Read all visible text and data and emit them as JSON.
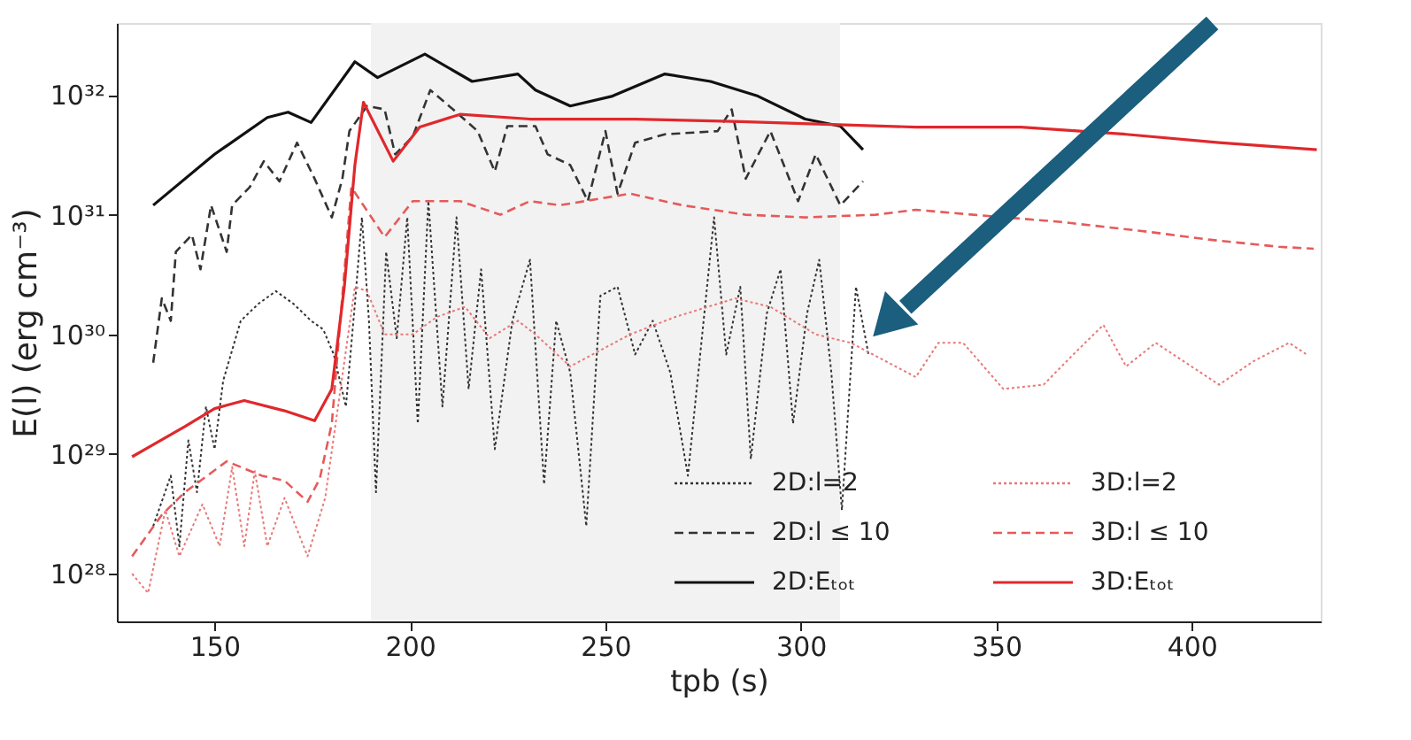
{
  "chart_data": {
    "type": "line",
    "xlabel": "tpb (s)",
    "ylabel": "E(l) (erg cm⁻³)",
    "xlim": [
      125,
      433
    ],
    "xticks": [
      150,
      200,
      250,
      300,
      350,
      400
    ],
    "ylim": [
      4e+27,
      4e+32
    ],
    "log": "y",
    "yticks": [
      {
        "value": 1e+28,
        "label": "10²⁸"
      },
      {
        "value": 1e+29,
        "label": "10²⁹"
      },
      {
        "value": 1e+30,
        "label": "10³⁰"
      },
      {
        "value": 1e+31,
        "label": "10³¹"
      },
      {
        "value": 1e+32,
        "label": "10³²"
      }
    ],
    "grid": false,
    "legend": "bottom right",
    "bands": [
      {
        "axis": "x",
        "from": 190,
        "to": 310,
        "color": "#f2f2f2"
      }
    ],
    "series": [
      {
        "name": "2D:l=2",
        "color": "#333333",
        "line_style": "dotted",
        "x": [
          134.3,
          138.8,
          141.0,
          143.3,
          145.5,
          147.8,
          150,
          152.2,
          156.7,
          161.2,
          165.7,
          170.2,
          174.7,
          177.8,
          180.5,
          183.6,
          185.9,
          187.7,
          189.5,
          191.3,
          193.9,
          196.6,
          199.3,
          202.0,
          204.7,
          208.3,
          211.9,
          215.0,
          218.2,
          221.7,
          226.2,
          230.7,
          234.3,
          237.4,
          241.0,
          245.1,
          248.7,
          253.1,
          257.6,
          262.1,
          266.6,
          271.1,
          277.8,
          280.9,
          284.5,
          287.2,
          291.3,
          294.8,
          298.0,
          301.6,
          304.7,
          307.8,
          310.5,
          314.1,
          317.3
        ],
        "values": [
          2.5e+28,
          6.6e+28,
          1.7e+28,
          1.3e+29,
          4.8e+28,
          2.5e+29,
          1.1e+29,
          4.1e+29,
          1.3e+30,
          1.8e+30,
          2.3e+30,
          1.8e+30,
          1.3e+30,
          1.1e+30,
          6.8e+29,
          2.5e+29,
          1.8e+30,
          9.5e+30,
          1.3e+30,
          4.8e+28,
          4.9e+30,
          9.3e+29,
          9.5e+30,
          1.8e+29,
          1.3e+31,
          2.5e+29,
          9.5e+30,
          3.5e+29,
          3.5e+30,
          1.1e+29,
          1.3e+30,
          4.2e+30,
          5.6e+28,
          1.3e+30,
          4.8e+29,
          2.5e+28,
          2.1e+30,
          2.5e+30,
          6.8e+29,
          1.3e+30,
          4.8e+29,
          6.6e+28,
          9.5e+30,
          6.8e+29,
          2.5e+30,
          9.1e+28,
          1.5e+30,
          3.5e+30,
          1.8e+29,
          1.5e+30,
          4.2e+30,
          4.8e+29,
          3.4e+28,
          2.5e+30,
          6.8e+29
        ]
      },
      {
        "name": "2D:l ≤ 10",
        "color": "#333333",
        "line_style": "dashed",
        "x": [
          134.3,
          136.5,
          138.8,
          140.1,
          144.2,
          146.4,
          149.1,
          153.1,
          154.5,
          159.0,
          162.6,
          166.6,
          171.1,
          175.6,
          180.0,
          182.7,
          184.5,
          189.0,
          193.5,
          196.2,
          200.7,
          205.2,
          211.4,
          217.3,
          221.7,
          224.9,
          232.1,
          235.2,
          241.0,
          245.5,
          250.0,
          253.1,
          257.6,
          265.2,
          278.7,
          282.3,
          285.9,
          292.2,
          299.3,
          303.8,
          310.1,
          315.9
        ],
        "values": [
          5.8e+29,
          2e+30,
          1.3e+30,
          4.9e+30,
          6.8e+30,
          3.5e+30,
          1.2e+31,
          4.9e+30,
          1.2e+31,
          1.7e+31,
          2.8e+31,
          1.9e+31,
          4e+31,
          2e+31,
          9.5e+30,
          2e+31,
          5e+31,
          8.1e+31,
          7.6e+31,
          3.2e+31,
          4.5e+31,
          1.1e+32,
          7.4e+31,
          5e+31,
          2.3e+31,
          5.5e+31,
          5.5e+31,
          3.2e+31,
          2.6e+31,
          1.3e+31,
          5e+31,
          1.5e+31,
          4e+31,
          4.7e+31,
          5e+31,
          7.6e+31,
          2e+31,
          5e+31,
          1.3e+31,
          3.2e+31,
          1.2e+31,
          1.9e+31
        ]
      },
      {
        "name": "2D:Eₜₒₜ",
        "color": "#111111",
        "line_style": "solid",
        "x": [
          134.3,
          150,
          163.5,
          168.8,
          174.7,
          185.9,
          191.7,
          203.8,
          215.9,
          227.6,
          232.1,
          241.0,
          251.8,
          265.2,
          276.9,
          289.0,
          301.1,
          310.1,
          315.9
        ],
        "values": [
          1.2e+31,
          3.2e+31,
          6.5e+31,
          7.2e+31,
          5.9e+31,
          1.9e+32,
          1.4e+32,
          2.2e+32,
          1.3e+32,
          1.5e+32,
          1.1e+32,
          8.1e+31,
          9.8e+31,
          1.5e+32,
          1.3e+32,
          9.8e+31,
          6.3e+31,
          5.5e+31,
          3.5e+31
        ]
      },
      {
        "name": "3D:l=2",
        "color": "#e87878",
        "line_style": "dotted",
        "x": [
          128.9,
          133.0,
          137.4,
          141.0,
          146.9,
          151.3,
          154.5,
          157.6,
          160.3,
          163.5,
          167.9,
          173.8,
          178.3,
          185.9,
          189.0,
          193.5,
          200.7,
          206.9,
          214.1,
          220.4,
          227.6,
          232.1,
          241.0,
          256.3,
          267.9,
          283.2,
          292.2,
          303.8,
          312.8,
          329.4,
          335.2,
          341.5,
          351.8,
          362.1,
          369.7,
          377.4,
          383.2,
          390.8,
          407.0,
          415.9,
          424.9,
          429.4
        ],
        "values": [
          1e+28,
          6.9e+27,
          3.4e+28,
          1.4e+28,
          3.8e+28,
          1.7e+28,
          7.8e+28,
          1.7e+28,
          7.2e+28,
          1.7e+28,
          4.3e+28,
          1.4e+28,
          4.3e+28,
          2.5e+30,
          2.3e+30,
          1e+30,
          1e+30,
          1.4e+30,
          1.7e+30,
          9.3e+29,
          1.3e+30,
          1e+30,
          5.4e+29,
          1e+30,
          1.4e+30,
          2e+30,
          1.7e+30,
          1e+30,
          8.5e+29,
          4.4e+29,
          8.5e+29,
          8.5e+29,
          3.5e+29,
          3.8e+29,
          6.8e+29,
          1.2e+30,
          5.4e+29,
          8.5e+29,
          3.8e+29,
          6e+29,
          8.5e+29,
          6.8e+29
        ]
      },
      {
        "name": "3D:l ≤ 10",
        "color": "#e65a5a",
        "line_style": "dashed",
        "x": [
          128.9,
          136.5,
          142.4,
          153.1,
          162.1,
          167.9,
          173.8,
          176.9,
          180.0,
          185.0,
          193.5,
          200.7,
          212.8,
          223.1,
          230.7,
          238.3,
          256.3,
          269.7,
          285.9,
          301.1,
          319.1,
          329.4,
          344.2,
          366.6,
          389.0,
          404.3,
          422.2,
          431.2
        ],
        "values": [
          1.4e+28,
          3.1e+28,
          4.8e+28,
          8.7e+28,
          6.6e+28,
          6e+28,
          4e+28,
          6.2e+28,
          1.8e+29,
          1.7e+31,
          6.5e+30,
          1.3e+31,
          1.3e+31,
          1e+31,
          1.3e+31,
          1.2e+31,
          1.5e+31,
          1.2e+31,
          1e+31,
          9.5e+30,
          1e+31,
          1.1e+31,
          1e+31,
          8.7e+30,
          7.2e+30,
          6.2e+30,
          5.4e+30,
          5.2e+30
        ]
      },
      {
        "name": "3D:Eₜₒₜ",
        "color": "#e0282c",
        "line_style": "solid",
        "x": [
          128.9,
          142.4,
          150,
          157.6,
          167.9,
          175.6,
          180.0,
          183.2,
          185.9,
          188.1,
          195.7,
          202.5,
          212.8,
          230.7,
          257.6,
          284.5,
          329.4,
          356.3,
          383.2,
          407.0,
          432
        ],
        "values": [
          9.5e+28,
          1.7e+29,
          2.4e+29,
          2.8e+29,
          2.3e+29,
          1.9e+29,
          3.5e+29,
          2.5e+30,
          2.6e+31,
          8.7e+31,
          2.8e+31,
          5.4e+31,
          6.9e+31,
          6.3e+31,
          6.3e+31,
          6e+31,
          5.4e+31,
          5.4e+31,
          4.7e+31,
          4e+31,
          3.5e+31
        ]
      }
    ]
  }
}
